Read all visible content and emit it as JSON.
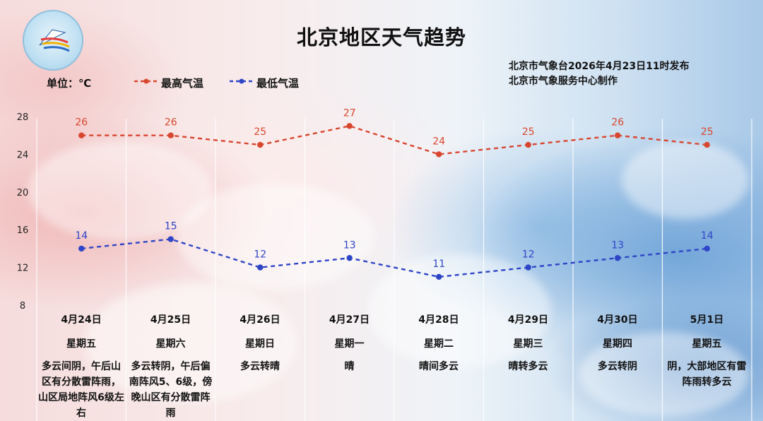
{
  "title": "北京地区天气趋势",
  "issuer": {
    "line1": "北京市气象台2026年4月23日11时发布",
    "line2": "北京市气象服务中心制作"
  },
  "unit_label": "单位：℃",
  "colors": {
    "high": "#d9462e",
    "low": "#2e45c8",
    "grid": "#ffffff"
  },
  "chart_data": {
    "type": "line",
    "ylim": [
      8,
      28
    ],
    "yticks": [
      8,
      12,
      16,
      20,
      24,
      28
    ],
    "grid": true,
    "legend": "top-left",
    "categories": [
      "4月24日",
      "4月25日",
      "4月26日",
      "4月27日",
      "4月28日",
      "4月29日",
      "4月30日",
      "5月1日"
    ],
    "series": [
      {
        "name": "最高气温",
        "values": [
          26,
          26,
          25,
          27,
          24,
          25,
          26,
          25
        ]
      },
      {
        "name": "最低气温",
        "values": [
          14,
          15,
          12,
          13,
          11,
          12,
          13,
          14
        ]
      }
    ]
  },
  "days": [
    {
      "date": "4月24日",
      "weekday": "星期五",
      "weather": "多云间阴，午后山区有分散雷阵雨，山区局地阵风6级左右"
    },
    {
      "date": "4月25日",
      "weekday": "星期六",
      "weather": "多云转阴，午后偏南阵风5、6级，傍晚山区有分散雷阵雨"
    },
    {
      "date": "4月26日",
      "weekday": "星期日",
      "weather": "多云转晴"
    },
    {
      "date": "4月27日",
      "weekday": "星期一",
      "weather": "晴"
    },
    {
      "date": "4月28日",
      "weekday": "星期二",
      "weather": "晴间多云"
    },
    {
      "date": "4月29日",
      "weekday": "星期三",
      "weather": "晴转多云"
    },
    {
      "date": "4月30日",
      "weekday": "星期四",
      "weather": "多云转阴"
    },
    {
      "date": "5月1日",
      "weekday": "星期五",
      "weather": "阴，大部地区有雷阵雨转多云"
    }
  ]
}
